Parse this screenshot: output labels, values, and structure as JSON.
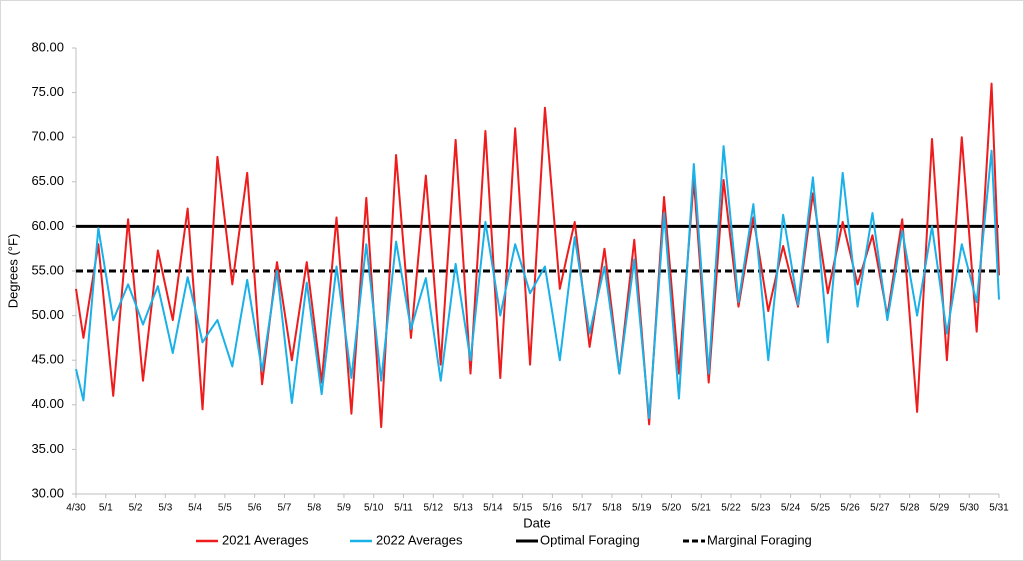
{
  "chart_data": {
    "type": "line",
    "y_label": "Degrees (°F)",
    "x_label": "Date",
    "x": [
      0,
      0.25,
      0.5,
      0.75,
      1,
      1.25,
      1.5,
      1.75,
      2,
      2.25,
      2.5,
      2.75,
      3,
      3.25,
      3.5,
      3.75,
      4,
      4.25,
      4.5,
      4.75,
      5,
      5.25,
      5.5,
      5.75,
      6,
      6.25,
      6.5,
      6.75,
      7,
      7.25,
      7.5,
      7.75,
      8,
      8.25,
      8.5,
      8.75,
      9,
      9.25,
      9.5,
      9.75,
      10,
      10.25,
      10.5,
      10.75,
      11,
      11.25,
      11.5,
      11.75,
      12,
      12.25,
      12.5,
      12.75,
      13,
      13.25,
      13.5,
      13.75,
      14,
      14.25,
      14.5,
      14.75,
      15,
      15.25,
      15.5,
      15.75,
      16,
      16.25,
      16.5,
      16.75,
      17,
      17.25,
      17.5,
      17.75,
      18,
      18.25,
      18.5,
      18.75,
      19,
      19.25,
      19.5,
      19.75,
      20,
      20.25,
      20.5,
      20.75,
      21,
      21.25,
      21.5,
      21.75,
      22,
      22.25,
      22.5,
      22.75,
      23,
      23.25,
      23.5,
      23.75,
      24,
      24.25,
      24.5,
      24.75,
      25,
      25.25,
      25.5,
      25.75,
      26,
      26.25,
      26.5,
      26.75,
      27,
      27.25,
      27.5,
      27.75,
      28,
      28.25,
      28.5,
      28.75,
      29,
      29.25,
      29.5,
      29.75,
      30,
      30.25,
      30.5,
      30.75,
      31
    ],
    "series": [
      {
        "name": "2021 Averages",
        "color": "#ee1c1c",
        "values": [
          53,
          47.5,
          52.8,
          58,
          49.5,
          41,
          50.9,
          60.8,
          51.8,
          42.7,
          50,
          57.3,
          53.4,
          49.5,
          55.8,
          62,
          50.8,
          39.5,
          53.7,
          67.8,
          60.7,
          53.5,
          59.8,
          66,
          54.2,
          42.3,
          49.2,
          56,
          50.5,
          45,
          50.5,
          56,
          49.3,
          42.5,
          51.8,
          61,
          50,
          39,
          51.1,
          63.2,
          50.4,
          37.5,
          52.8,
          68,
          57.8,
          47.5,
          56.6,
          65.7,
          55.1,
          44.5,
          57.1,
          69.7,
          56.6,
          43.5,
          57.1,
          70.7,
          56.9,
          43,
          57,
          71,
          57.8,
          44.5,
          58.9,
          73.3,
          63.2,
          53,
          56.8,
          60.5,
          53.5,
          46.5,
          52,
          57.5,
          50.5,
          43.5,
          51,
          58.5,
          48.2,
          37.8,
          50.6,
          63.3,
          53.4,
          43.5,
          54.4,
          65.2,
          53.9,
          42.5,
          53.9,
          65.2,
          58.1,
          51,
          56,
          61,
          55.8,
          50.5,
          54.2,
          57.8,
          54.4,
          51,
          57.4,
          63.7,
          58.1,
          52.5,
          56.5,
          60.5,
          57,
          53.5,
          56.3,
          59,
          54.5,
          50,
          55.4,
          60.8,
          50,
          39.2,
          54.5,
          69.8,
          57.4,
          45,
          57.5,
          70,
          59.1,
          48.2,
          62.1,
          76,
          54.5
        ]
      },
      {
        "name": "2022 Averages",
        "color": "#1ab0e8",
        "values": [
          44,
          40.5,
          50.2,
          59.8,
          54.7,
          49.5,
          51.5,
          53.5,
          51.3,
          49,
          51.2,
          53.3,
          49.6,
          45.8,
          50.1,
          54.3,
          50.8,
          47,
          48.3,
          49.5,
          46.9,
          44.3,
          49.2,
          54,
          48.9,
          43.8,
          49.4,
          55,
          47.6,
          40.2,
          47,
          53.7,
          47.5,
          41.2,
          48.4,
          55.5,
          49.3,
          43,
          50.5,
          58,
          50.4,
          42.7,
          50.5,
          58.3,
          53.4,
          48.5,
          51.4,
          54.2,
          48.5,
          42.7,
          49.3,
          55.8,
          50.4,
          45,
          52.8,
          60.5,
          55.3,
          50,
          54,
          58,
          55.3,
          52.5,
          54,
          55.5,
          50.3,
          45,
          51.9,
          58.8,
          53.4,
          48,
          51.8,
          55.5,
          49.5,
          43.5,
          49.9,
          56.3,
          47.4,
          38.5,
          50,
          61.5,
          51.1,
          40.7,
          53.9,
          67,
          55.3,
          43.5,
          56.3,
          69,
          60.3,
          51.5,
          57,
          62.5,
          53.8,
          45,
          53.2,
          61.3,
          56.3,
          51.2,
          58.4,
          65.5,
          56.3,
          47,
          56.5,
          66,
          58.5,
          51,
          56.3,
          61.5,
          55.5,
          49.5,
          54.5,
          59.5,
          54.8,
          50,
          55,
          60,
          54,
          48,
          53,
          58,
          54.8,
          51.5,
          60,
          68.5,
          51.8
        ]
      }
    ],
    "reference_lines": [
      {
        "name": "Optimal Foraging",
        "value": 60,
        "color": "#000000",
        "dashed": false
      },
      {
        "name": "Marginal Foraging",
        "value": 55,
        "color": "#000000",
        "dashed": true
      }
    ],
    "xlim": [
      0,
      31
    ],
    "xticks": [
      {
        "value": 0,
        "label": "4/30"
      },
      {
        "value": 1,
        "label": "5/1"
      },
      {
        "value": 2,
        "label": "5/2"
      },
      {
        "value": 3,
        "label": "5/3"
      },
      {
        "value": 4,
        "label": "5/4"
      },
      {
        "value": 5,
        "label": "5/5"
      },
      {
        "value": 6,
        "label": "5/6"
      },
      {
        "value": 7,
        "label": "5/7"
      },
      {
        "value": 8,
        "label": "5/8"
      },
      {
        "value": 9,
        "label": "5/9"
      },
      {
        "value": 10,
        "label": "5/10"
      },
      {
        "value": 11,
        "label": "5/11"
      },
      {
        "value": 12,
        "label": "5/12"
      },
      {
        "value": 13,
        "label": "5/13"
      },
      {
        "value": 14,
        "label": "5/14"
      },
      {
        "value": 15,
        "label": "5/15"
      },
      {
        "value": 16,
        "label": "5/16"
      },
      {
        "value": 17,
        "label": "5/17"
      },
      {
        "value": 18,
        "label": "5/18"
      },
      {
        "value": 19,
        "label": "5/19"
      },
      {
        "value": 20,
        "label": "5/20"
      },
      {
        "value": 21,
        "label": "5/21"
      },
      {
        "value": 22,
        "label": "5/22"
      },
      {
        "value": 23,
        "label": "5/23"
      },
      {
        "value": 24,
        "label": "5/24"
      },
      {
        "value": 25,
        "label": "5/25"
      },
      {
        "value": 26,
        "label": "5/26"
      },
      {
        "value": 27,
        "label": "5/27"
      },
      {
        "value": 28,
        "label": "5/28"
      },
      {
        "value": 29,
        "label": "5/29"
      },
      {
        "value": 30,
        "label": "5/30"
      },
      {
        "value": 31,
        "label": "5/31"
      }
    ],
    "ylim": [
      30,
      80
    ],
    "yticks": [
      {
        "value": 30,
        "label": "30.00"
      },
      {
        "value": 35,
        "label": "35.00"
      },
      {
        "value": 40,
        "label": "40.00"
      },
      {
        "value": 45,
        "label": "45.00"
      },
      {
        "value": 50,
        "label": "50.00"
      },
      {
        "value": 55,
        "label": "55.00"
      },
      {
        "value": 60,
        "label": "60.00"
      },
      {
        "value": 65,
        "label": "65.00"
      },
      {
        "value": 70,
        "label": "70.00"
      },
      {
        "value": 75,
        "label": "75.00"
      },
      {
        "value": 80,
        "label": "80.00"
      }
    ],
    "grid": false
  }
}
